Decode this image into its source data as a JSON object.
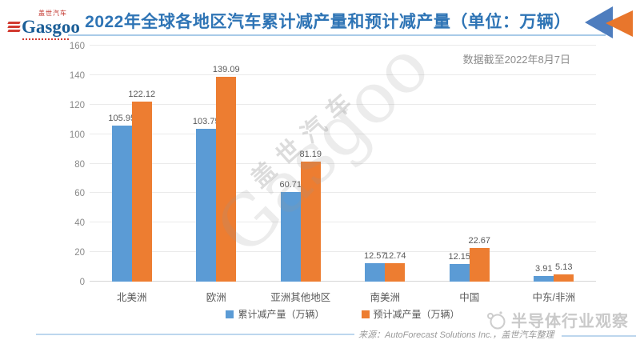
{
  "header": {
    "logo": {
      "cn": "盖世汽车",
      "en": "Gasgoo"
    },
    "title": "2022年全球各地区汽车累计减产量和预计减产量（单位：万辆）"
  },
  "chart": {
    "note": "数据截至2022年8月7日",
    "watermark_cn": "盖世汽车",
    "watermark_en": "Gasgoo"
  },
  "chart_data": {
    "type": "bar",
    "title": "2022年全球各地区汽车累计减产量和预计减产量",
    "unit": "万辆",
    "categories": [
      "北美洲",
      "欧洲",
      "亚洲其他地区",
      "南美洲",
      "中国",
      "中东/非洲"
    ],
    "series": [
      {
        "name": "累计减产量（万辆）",
        "color": "#5B9BD5",
        "values": [
          105.95,
          103.75,
          60.71,
          12.57,
          12.15,
          3.91
        ]
      },
      {
        "name": "预计减产量（万辆）",
        "color": "#ED7D31",
        "values": [
          122.12,
          139.09,
          81.19,
          12.74,
          22.67,
          5.13
        ]
      }
    ],
    "ylim": [
      0,
      160
    ],
    "yticks": [
      0,
      20,
      40,
      60,
      80,
      100,
      120,
      140,
      160
    ],
    "grid": true,
    "legend_position": "bottom",
    "annotation": "数据截至2022年8月7日"
  },
  "footer": {
    "source": "来源：AutoForecast Solutions Inc.，盖世汽车整理",
    "observer": "半导体行业观察"
  },
  "colors": {
    "title_blue": "#2E74B5",
    "underline_blue": "#A9CBE8",
    "bar_blue": "#5B9BD5",
    "bar_orange": "#ED7D31",
    "arrow_blue": "#4E7DBE",
    "arrow_orange": "#E8762C"
  }
}
